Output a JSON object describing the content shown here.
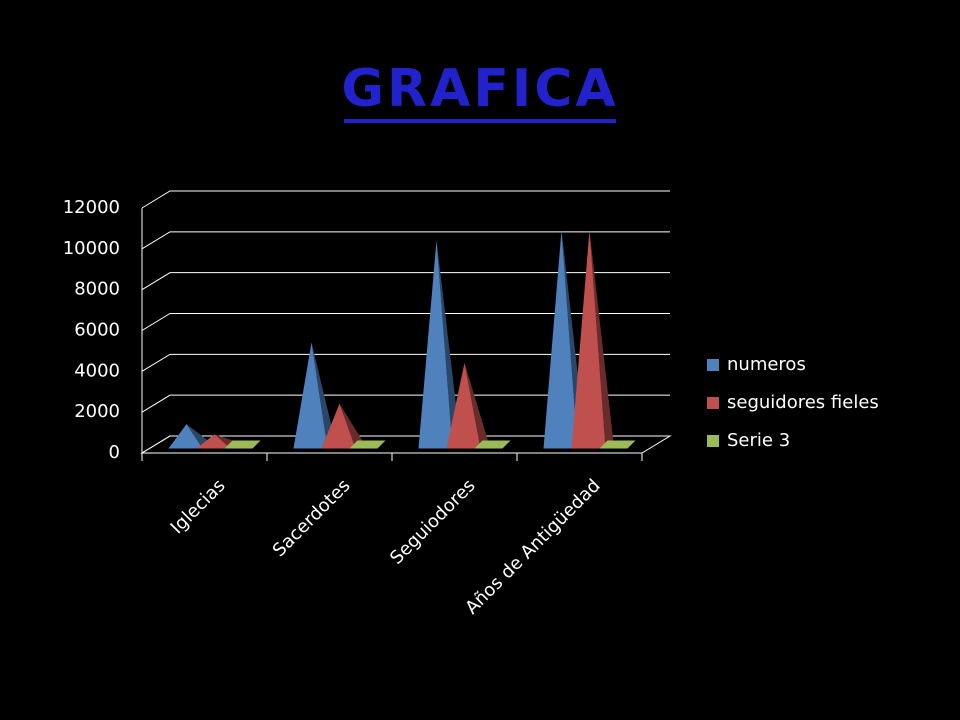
{
  "chart_data": {
    "type": "pyramid3d",
    "title": "GRAFICA",
    "categories": [
      "Iglecias",
      "Sacerdotes",
      "Seguiodores",
      "Años de Antigüedad"
    ],
    "series": [
      {
        "name": "numeros",
        "color": "#4f81bd",
        "values": [
          1000,
          5000,
          10000,
          10500
        ]
      },
      {
        "name": "seguidores fieles",
        "color": "#c0504d",
        "values": [
          500,
          2000,
          4000,
          10500
        ]
      },
      {
        "name": "Serie 3",
        "color": "#9bbb59",
        "values": [
          0,
          0,
          0,
          0
        ]
      }
    ],
    "ylim": [
      0,
      12000
    ],
    "yticks": [
      0,
      2000,
      4000,
      6000,
      8000,
      10000,
      12000
    ],
    "grid": true,
    "legend": "right"
  }
}
